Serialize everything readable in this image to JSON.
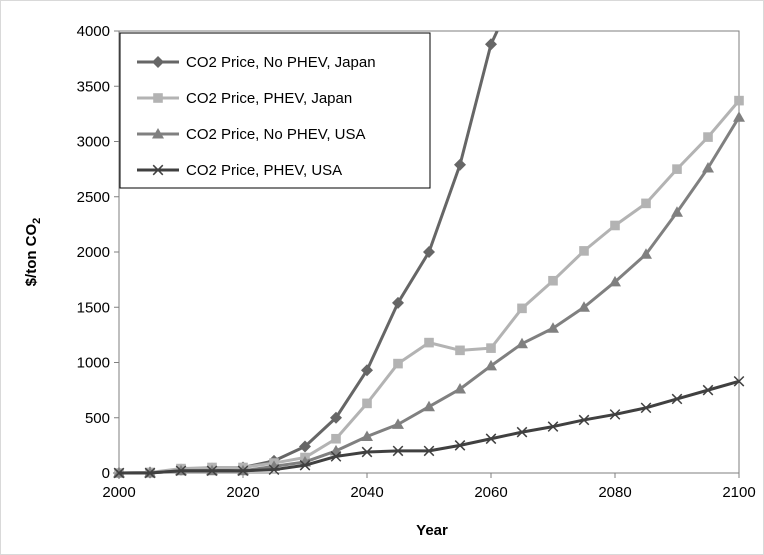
{
  "chart_data": {
    "type": "line",
    "xlabel": "Year",
    "ylabel": "$/ton CO",
    "ylabel_subscript": "2",
    "xlim": [
      2000,
      2100
    ],
    "ylim": [
      0,
      4000
    ],
    "x_ticks": [
      2000,
      2020,
      2040,
      2060,
      2080,
      2100
    ],
    "y_ticks": [
      0,
      500,
      1000,
      1500,
      2000,
      2500,
      3000,
      3500,
      4000
    ],
    "grid": false,
    "legend_position": "top-left",
    "series": [
      {
        "name": "CO2 Price, No PHEV, Japan",
        "marker": "diamond",
        "color": "#666666",
        "x": [
          2000,
          2005,
          2010,
          2015,
          2020,
          2025,
          2030,
          2035,
          2040,
          2045,
          2050,
          2055,
          2060,
          2061
        ],
        "y": [
          0,
          5,
          30,
          40,
          50,
          110,
          240,
          500,
          930,
          1540,
          2000,
          2790,
          3880,
          4000
        ]
      },
      {
        "name": "CO2 Price, PHEV, Japan",
        "marker": "square",
        "color": "#b3b3b3",
        "x": [
          2000,
          2005,
          2010,
          2015,
          2020,
          2025,
          2030,
          2035,
          2040,
          2045,
          2050,
          2055,
          2060,
          2065,
          2070,
          2075,
          2080,
          2085,
          2090,
          2095,
          2100
        ],
        "y": [
          0,
          5,
          40,
          50,
          50,
          90,
          140,
          310,
          630,
          990,
          1180,
          1110,
          1130,
          1490,
          1740,
          2010,
          2240,
          2440,
          2750,
          3040,
          3370
        ]
      },
      {
        "name": "CO2 Price, No PHEV, USA",
        "marker": "triangle",
        "color": "#808080",
        "x": [
          2000,
          2005,
          2010,
          2015,
          2020,
          2025,
          2030,
          2035,
          2040,
          2045,
          2050,
          2055,
          2060,
          2065,
          2070,
          2075,
          2080,
          2085,
          2090,
          2095,
          2100
        ],
        "y": [
          0,
          0,
          20,
          20,
          20,
          60,
          100,
          200,
          330,
          440,
          600,
          760,
          970,
          1170,
          1310,
          1500,
          1730,
          1980,
          2360,
          2760,
          3220
        ]
      },
      {
        "name": "CO2 Price, PHEV, USA",
        "marker": "x",
        "color": "#404040",
        "x": [
          2000,
          2005,
          2010,
          2015,
          2020,
          2025,
          2030,
          2035,
          2040,
          2045,
          2050,
          2055,
          2060,
          2065,
          2070,
          2075,
          2080,
          2085,
          2090,
          2095,
          2100
        ],
        "y": [
          0,
          0,
          20,
          20,
          20,
          30,
          70,
          150,
          190,
          200,
          200,
          250,
          310,
          370,
          420,
          480,
          530,
          590,
          670,
          750,
          830
        ]
      }
    ]
  }
}
